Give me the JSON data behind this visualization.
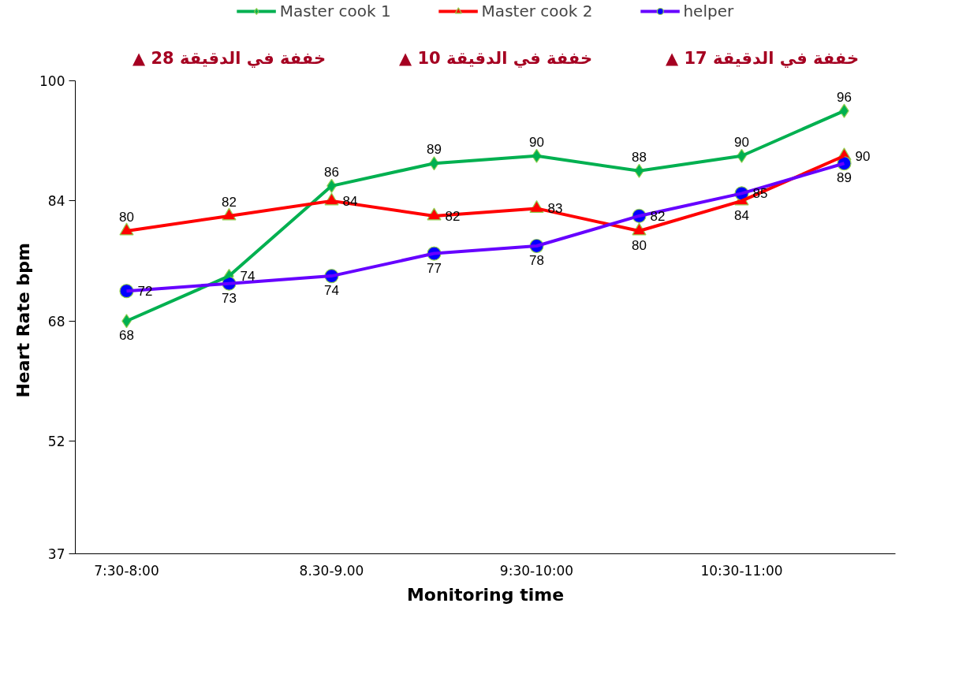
{
  "chart_data": {
    "type": "line",
    "xlabel": "Monitoring time",
    "ylabel": "Heart  Rate bpm",
    "categories": [
      "7:30-8:00",
      null,
      "8.30-9.00",
      null,
      "9:30-10:00",
      null,
      "10:30-11:00",
      null
    ],
    "series": [
      {
        "name": "Master cook 1",
        "color": "#00b050",
        "marker": "diamond",
        "values": [
          68,
          74,
          86,
          89,
          90,
          88,
          90,
          96
        ]
      },
      {
        "name": "Master cook 2",
        "color": "#ff0000",
        "marker": "triangle",
        "values": [
          80,
          82,
          84,
          82,
          83,
          80,
          84,
          90
        ]
      },
      {
        "name": "helper",
        "color": "#6600ff",
        "marker": "circle",
        "values": [
          72,
          73,
          74,
          77,
          78,
          82,
          85,
          89
        ]
      }
    ],
    "ylim": [
      37,
      100
    ],
    "yticks": [
      37,
      52,
      68,
      84,
      100
    ],
    "annotations": [
      "▲ 28 خففة في الدقيقة",
      "▲ 10 خففة في الدقيقة",
      "▲ 17 خففة في الدقيقة"
    ],
    "data_labels": true,
    "legend": "top",
    "grid": false
  }
}
